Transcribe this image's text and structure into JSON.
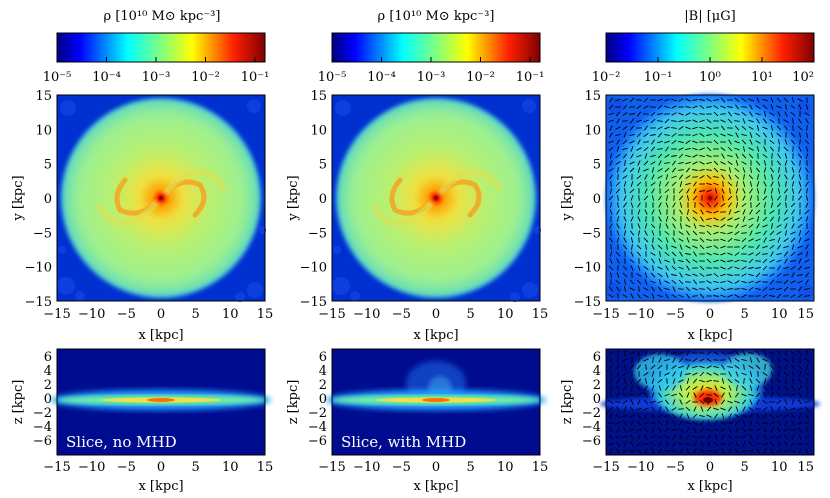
{
  "colors": {
    "jet": [
      "#00007f",
      "#0000ff",
      "#007fff",
      "#00ffff",
      "#7fff7f",
      "#ffff00",
      "#ff7f00",
      "#ff0000",
      "#7f0000"
    ],
    "background_deep": "#00109a",
    "arrow": "#000000",
    "overlay_text": "#ffffff"
  },
  "panels": [
    {
      "colorbar": {
        "title": "ρ [10¹⁰ M⊙ kpc⁻³]",
        "ticks": [
          "10⁻⁵",
          "10⁻⁴",
          "10⁻³",
          "10⁻²",
          "10⁻¹"
        ],
        "log_range": [
          -5,
          -0.8
        ]
      },
      "top": {
        "xlabel": "x [kpc]",
        "ylabel": "y [kpc]",
        "xticks": [
          "−15",
          "−10",
          "−5",
          "0",
          "5",
          "10",
          "15"
        ],
        "yticks": [
          "15",
          "10",
          "5",
          "0",
          "−5",
          "−10",
          "−15"
        ],
        "field": "face-on gas density"
      },
      "bottom": {
        "xlabel": "x [kpc]",
        "ylabel": "z [kpc]",
        "xticks": [
          "−15",
          "−10",
          "−5",
          "0",
          "5",
          "10",
          "15"
        ],
        "zticks": [
          "6",
          "4",
          "2",
          "0",
          "−2",
          "−4",
          "−6"
        ],
        "annotation": "Slice, no MHD",
        "field": "edge-on gas density"
      }
    },
    {
      "colorbar": {
        "title": "ρ [10¹⁰ M⊙ kpc⁻³]",
        "ticks": [
          "10⁻⁵",
          "10⁻⁴",
          "10⁻³",
          "10⁻²",
          "10⁻¹"
        ],
        "log_range": [
          -5,
          -0.8
        ]
      },
      "top": {
        "xlabel": "x [kpc]",
        "ylabel": "y [kpc]",
        "xticks": [
          "−15",
          "−10",
          "−5",
          "0",
          "5",
          "10",
          "15"
        ],
        "yticks": [
          "15",
          "10",
          "5",
          "0",
          "−5",
          "−10",
          "−15"
        ],
        "field": "face-on gas density"
      },
      "bottom": {
        "xlabel": "x [kpc]",
        "ylabel": "z [kpc]",
        "xticks": [
          "−15",
          "−10",
          "−5",
          "0",
          "5",
          "10",
          "15"
        ],
        "zticks": [
          "6",
          "4",
          "2",
          "0",
          "−2",
          "−4",
          "−6"
        ],
        "annotation": "Slice, with MHD",
        "field": "edge-on gas density"
      }
    },
    {
      "colorbar": {
        "title": "|B| [μG]",
        "ticks": [
          "10⁻²",
          "10⁻¹",
          "10⁰",
          "10¹",
          "10²"
        ],
        "log_range": [
          -2,
          2
        ]
      },
      "top": {
        "xlabel": "x [kpc]",
        "ylabel": "y [kpc]",
        "xticks": [
          "−15",
          "−10",
          "−5",
          "0",
          "5",
          "10",
          "15"
        ],
        "yticks": [
          "15",
          "10",
          "5",
          "0",
          "−5",
          "−10",
          "−15"
        ],
        "field": "face-on magnetic field strength with field-direction vectors"
      },
      "bottom": {
        "xlabel": "x [kpc]",
        "ylabel": "z [kpc]",
        "xticks": [
          "−15",
          "−10",
          "−5",
          "0",
          "5",
          "10",
          "15"
        ],
        "zticks": [
          "6",
          "4",
          "2",
          "0",
          "−2",
          "−4",
          "−6"
        ],
        "annotation": "",
        "field": "edge-on magnetic field strength with field-direction vectors"
      }
    }
  ]
}
